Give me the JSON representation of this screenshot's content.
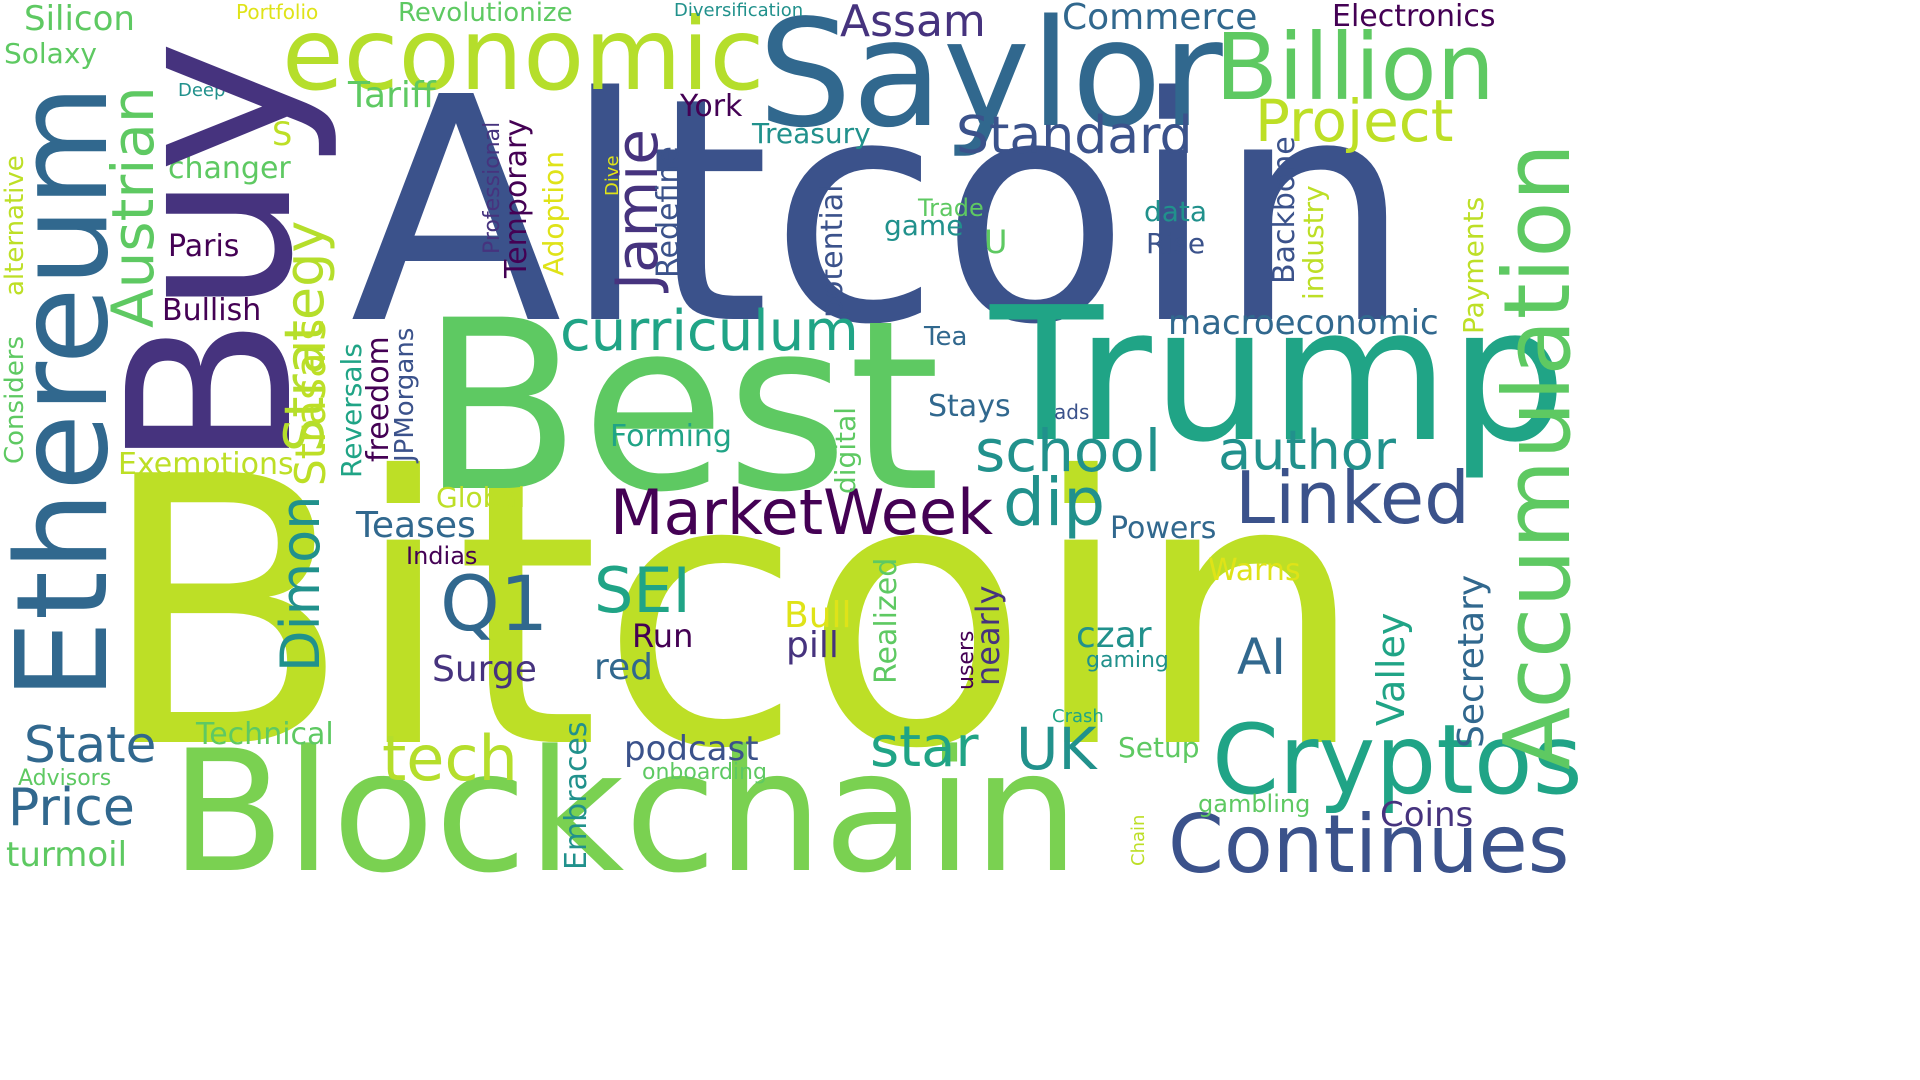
{
  "palette": {
    "navy": "#3b528b",
    "indigo": "#46337e",
    "purple": "#440154",
    "teal_blue": "#31688e",
    "teal": "#21918c",
    "green_teal": "#20a486",
    "green": "#5ec962",
    "light_green": "#7ad151",
    "lime": "#b5de2b",
    "yellow_green": "#bddf26",
    "yellow": "#dfe318"
  },
  "words": [
    {
      "text": "Bitcoin",
      "color": "#bddf26"
    },
    {
      "text": "Altcoin",
      "color": "#3b528b"
    },
    {
      "text": "Best",
      "color": "#5ec962"
    },
    {
      "text": "Trump",
      "color": "#20a486"
    },
    {
      "text": "Buy",
      "color": "#46337e"
    },
    {
      "text": "Ethereum",
      "color": "#31688e"
    },
    {
      "text": "Blockchain",
      "color": "#7ad151"
    },
    {
      "text": "Saylor",
      "color": "#31688e"
    },
    {
      "text": "Accumulation",
      "color": "#5ec962"
    },
    {
      "text": "economic",
      "color": "#b5de2b"
    },
    {
      "text": "Billion",
      "color": "#5ec962"
    },
    {
      "text": "Cryptos",
      "color": "#20a486"
    },
    {
      "text": "Continues",
      "color": "#3b528b"
    },
    {
      "text": "Linked",
      "color": "#3b528b"
    },
    {
      "text": "MarketWeek",
      "color": "#440154"
    },
    {
      "text": "Jamie",
      "color": "#46337e"
    },
    {
      "text": "Project",
      "color": "#bddf26"
    },
    {
      "text": "Strategy",
      "color": "#b5de2b"
    },
    {
      "text": "Austrian",
      "color": "#5ec962"
    },
    {
      "text": "curriculum",
      "color": "#20a486"
    },
    {
      "text": "school",
      "color": "#21918c"
    },
    {
      "text": "author",
      "color": "#21918c"
    },
    {
      "text": "Standard",
      "color": "#3b528b"
    },
    {
      "text": "dip",
      "color": "#21918c"
    },
    {
      "text": "Q1",
      "color": "#31688e"
    },
    {
      "text": "SEI",
      "color": "#20a486"
    },
    {
      "text": "Dimon",
      "color": "#21918c"
    },
    {
      "text": "Strasals",
      "color": "#bddf26"
    },
    {
      "text": "tech",
      "color": "#b5de2b"
    },
    {
      "text": "star",
      "color": "#20a486"
    },
    {
      "text": "UK",
      "color": "#21918c"
    },
    {
      "text": "State",
      "color": "#31688e"
    },
    {
      "text": "Price",
      "color": "#31688e"
    },
    {
      "text": "AI",
      "color": "#31688e"
    },
    {
      "text": "Assam",
      "color": "#46337e"
    },
    {
      "text": "Commerce",
      "color": "#31688e"
    },
    {
      "text": "Electronics",
      "color": "#440154"
    },
    {
      "text": "Silicon",
      "color": "#5ec962"
    },
    {
      "text": "Solaxy",
      "color": "#5ec962"
    },
    {
      "text": "Revolutionize",
      "color": "#5ec962"
    },
    {
      "text": "Portfolio",
      "color": "#dfe318"
    },
    {
      "text": "Diversification",
      "color": "#21918c"
    },
    {
      "text": "Tariff",
      "color": "#5ec962"
    },
    {
      "text": "Deep",
      "color": "#21918c"
    },
    {
      "text": "York",
      "color": "#440154"
    },
    {
      "text": "Treasury",
      "color": "#21918c"
    },
    {
      "text": "S",
      "color": "#bddf26"
    },
    {
      "text": "changer",
      "color": "#5ec962"
    },
    {
      "text": "Paris",
      "color": "#440154"
    },
    {
      "text": "Bullish",
      "color": "#440154"
    },
    {
      "text": "Exemptions",
      "color": "#bddf26"
    },
    {
      "text": "Global",
      "color": "#bddf26"
    },
    {
      "text": "Teases",
      "color": "#31688e"
    },
    {
      "text": "Indias",
      "color": "#440154"
    },
    {
      "text": "Forming",
      "color": "#20a486"
    },
    {
      "text": "Technical",
      "color": "#5ec962"
    },
    {
      "text": "Advisors",
      "color": "#5ec962"
    },
    {
      "text": "turmoil",
      "color": "#5ec962"
    },
    {
      "text": "podcast",
      "color": "#3b528b"
    },
    {
      "text": "onboarding",
      "color": "#5ec962"
    },
    {
      "text": "Surge",
      "color": "#46337e"
    },
    {
      "text": "red",
      "color": "#31688e"
    },
    {
      "text": "Run",
      "color": "#440154"
    },
    {
      "text": "Bull",
      "color": "#dfe318"
    },
    {
      "text": "pill",
      "color": "#46337e"
    },
    {
      "text": "czar",
      "color": "#21918c"
    },
    {
      "text": "gaming",
      "color": "#21918c"
    },
    {
      "text": "Crash",
      "color": "#20a486"
    },
    {
      "text": "Setup",
      "color": "#5ec962"
    },
    {
      "text": "gambling",
      "color": "#5ec962"
    },
    {
      "text": "Coins",
      "color": "#46337e"
    },
    {
      "text": "Warns",
      "color": "#dfe318"
    },
    {
      "text": "Powers",
      "color": "#31688e"
    },
    {
      "text": "Stays",
      "color": "#31688e"
    },
    {
      "text": "ads",
      "color": "#3b528b"
    },
    {
      "text": "Tea",
      "color": "#31688e"
    },
    {
      "text": "macroeconomic",
      "color": "#31688e"
    },
    {
      "text": "Rise",
      "color": "#3b528b"
    },
    {
      "text": "data",
      "color": "#21918c"
    },
    {
      "text": "game",
      "color": "#21918c"
    },
    {
      "text": "Trade",
      "color": "#5ec962"
    },
    {
      "text": "U",
      "color": "#5ec962"
    },
    {
      "text": "Considers",
      "color": "#5ec962"
    },
    {
      "text": "alternative",
      "color": "#bddf26"
    },
    {
      "text": "freedom",
      "color": "#440154"
    },
    {
      "text": "JPMorgans",
      "color": "#3b528b"
    },
    {
      "text": "Reversals",
      "color": "#20a486"
    },
    {
      "text": "Professional",
      "color": "#46337e"
    },
    {
      "text": "Temporary",
      "color": "#440154"
    },
    {
      "text": "Adoption",
      "color": "#dfe318"
    },
    {
      "text": "Dive",
      "color": "#dfe318"
    },
    {
      "text": "Redefine",
      "color": "#3b528b"
    },
    {
      "text": "potential",
      "color": "#3b528b"
    },
    {
      "text": "digital",
      "color": "#5ec962"
    },
    {
      "text": "Realized",
      "color": "#5ec962"
    },
    {
      "text": "users",
      "color": "#440154"
    },
    {
      "text": "nearly",
      "color": "#46337e"
    },
    {
      "text": "Valley",
      "color": "#20a486"
    },
    {
      "text": "Secretary",
      "color": "#31688e"
    },
    {
      "text": "Payments",
      "color": "#bddf26"
    },
    {
      "text": "industry",
      "color": "#bddf26"
    },
    {
      "text": "Backbone",
      "color": "#3b528b"
    },
    {
      "text": "Embraces",
      "color": "#21918c"
    },
    {
      "text": "Chain",
      "color": "#bddf26"
    }
  ]
}
